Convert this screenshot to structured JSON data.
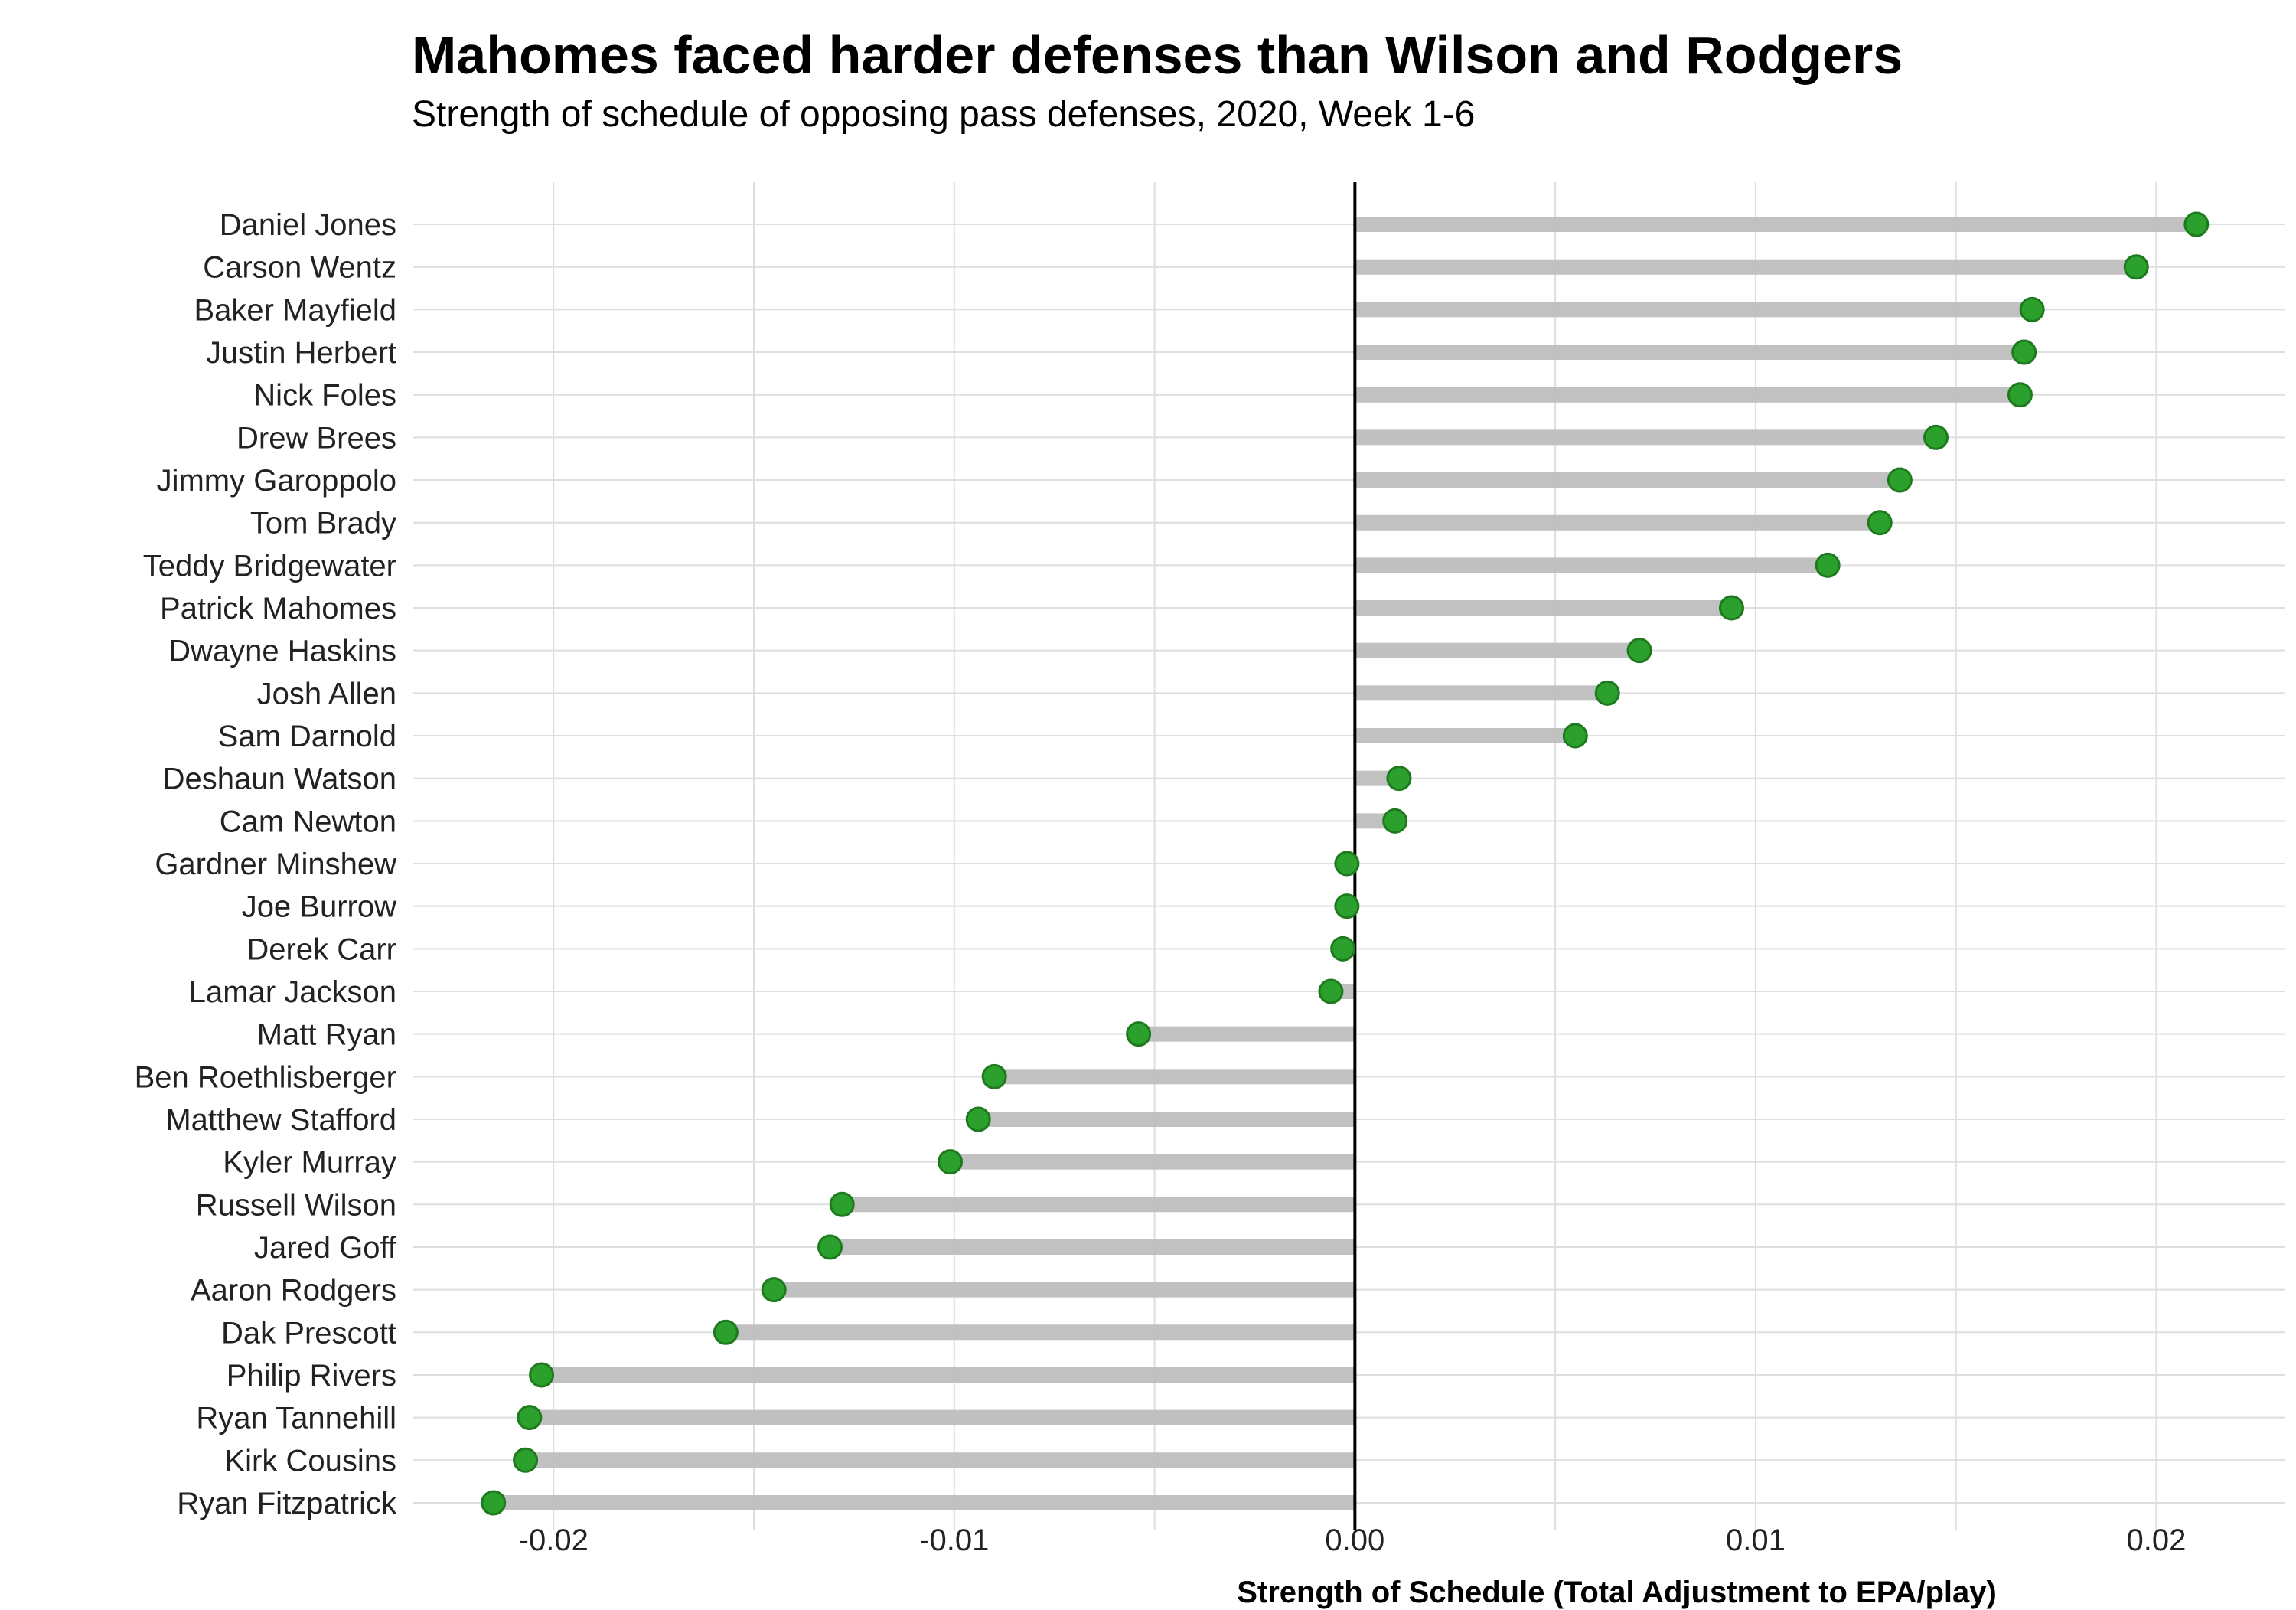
{
  "chart_data": {
    "type": "lollipop",
    "title": "Mahomes faced harder defenses than Wilson and Rodgers",
    "subtitle": "Strength of schedule of opposing pass defenses, 2020, Week 1-6",
    "xlabel": "Strength of Schedule (Total Adjustment to EPA/play)",
    "ylabel": "",
    "xlim": [
      -0.0235,
      0.0232
    ],
    "x_ticks": [
      -0.02,
      -0.01,
      0.0,
      0.01,
      0.02
    ],
    "x_tick_labels": [
      "-0.02",
      "-0.01",
      "0.00",
      "0.01",
      "0.02"
    ],
    "grid": true,
    "colors": {
      "point": "#2ca02c",
      "point_edge": "#1e7a1e",
      "stem": "#bebebe",
      "zero_line": "#000000",
      "grid": "#dedede"
    },
    "categories": [
      "Daniel Jones",
      "Carson Wentz",
      "Baker Mayfield",
      "Justin Herbert",
      "Nick Foles",
      "Drew Brees",
      "Jimmy Garoppolo",
      "Tom Brady",
      "Teddy Bridgewater",
      "Patrick Mahomes",
      "Dwayne Haskins",
      "Josh Allen",
      "Sam Darnold",
      "Deshaun Watson",
      "Cam Newton",
      "Gardner Minshew",
      "Joe Burrow",
      "Derek Carr",
      "Lamar Jackson",
      "Matt Ryan",
      "Ben Roethlisberger",
      "Matthew Stafford",
      "Kyler Murray",
      "Russell Wilson",
      "Jared Goff",
      "Aaron Rodgers",
      "Dak Prescott",
      "Philip Rivers",
      "Ryan Tannehill",
      "Kirk Cousins",
      "Ryan Fitzpatrick"
    ],
    "values": [
      0.021,
      0.0195,
      0.0169,
      0.0167,
      0.0166,
      0.0145,
      0.0136,
      0.0131,
      0.0118,
      0.0094,
      0.0071,
      0.0063,
      0.0055,
      0.0011,
      0.001,
      -0.0002,
      -0.0002,
      -0.0003,
      -0.0006,
      -0.0054,
      -0.009,
      -0.0094,
      -0.0101,
      -0.0128,
      -0.0131,
      -0.0145,
      -0.0157,
      -0.0203,
      -0.0206,
      -0.0207,
      -0.0215
    ]
  }
}
